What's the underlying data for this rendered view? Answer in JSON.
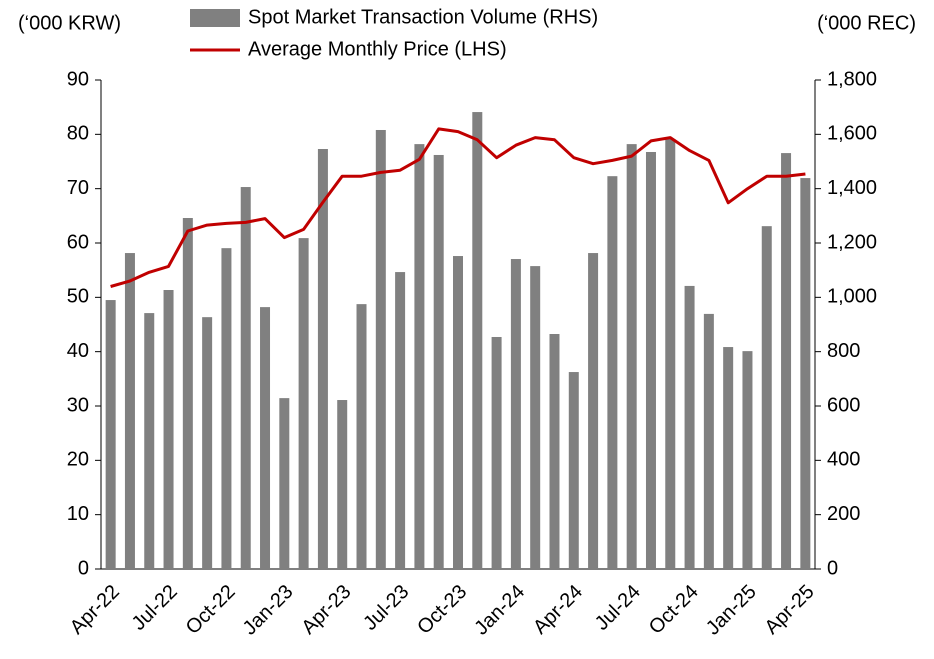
{
  "chart_data": {
    "type": "bar_line",
    "y_label": "(‘000 KRW)",
    "y2_label": "(‘000 REC)",
    "categories": [
      "Apr-22",
      null,
      null,
      "Jul-22",
      null,
      null,
      "Oct-22",
      null,
      null,
      "Jan-23",
      null,
      null,
      "Apr-23",
      null,
      null,
      "Jul-23",
      null,
      null,
      "Oct-23",
      null,
      null,
      "Jan-24",
      null,
      null,
      "Apr-24",
      null,
      null,
      "Jul-24",
      null,
      null,
      "Oct-24",
      null,
      null,
      "Jan-25",
      null,
      null,
      "Apr-25"
    ],
    "series": [
      {
        "name": "Spot Market Transaction Volume (RHS)",
        "type": "bar",
        "axis": "y2",
        "color": "#808080",
        "values": [
          990,
          1163,
          942,
          1027,
          1292,
          927,
          1181,
          1406,
          964,
          629,
          1218,
          1546,
          622,
          975,
          1616,
          1093,
          1564,
          1524,
          1152,
          1682,
          854,
          1141,
          1115,
          865,
          725,
          1163,
          1446,
          1564,
          1535,
          1583,
          1042,
          939,
          817,
          802,
          1262,
          1531,
          1439
        ]
      },
      {
        "name": "Average Monthly Price (LHS)",
        "type": "line",
        "axis": "y",
        "color": "#c00000",
        "values": [
          52,
          53,
          54.6,
          55.7,
          62.2,
          63.3,
          63.6,
          63.8,
          64.5,
          61,
          62.5,
          67.5,
          72.3,
          72.3,
          73,
          73.4,
          75.4,
          81,
          80.5,
          79,
          75.7,
          78,
          79.4,
          79,
          75.7,
          74.6,
          75.2,
          76,
          78.8,
          79.4,
          77,
          75.2,
          67.4,
          70,
          72.3,
          72.3,
          72.7
        ]
      }
    ],
    "ylim": [
      0,
      90
    ],
    "yticks": [
      0,
      10,
      20,
      30,
      40,
      50,
      60,
      70,
      80,
      90
    ],
    "y2lim": [
      0,
      1800
    ],
    "y2ticks": [
      0,
      200,
      400,
      600,
      800,
      {
        "value": 1000,
        "label": "1,000"
      },
      {
        "value": 1200,
        "label": "1,200"
      },
      {
        "value": 1400,
        "label": "1,400"
      },
      {
        "value": 1600,
        "label": "1,600"
      },
      {
        "value": 1800,
        "label": "1,800"
      }
    ],
    "grid": false
  }
}
